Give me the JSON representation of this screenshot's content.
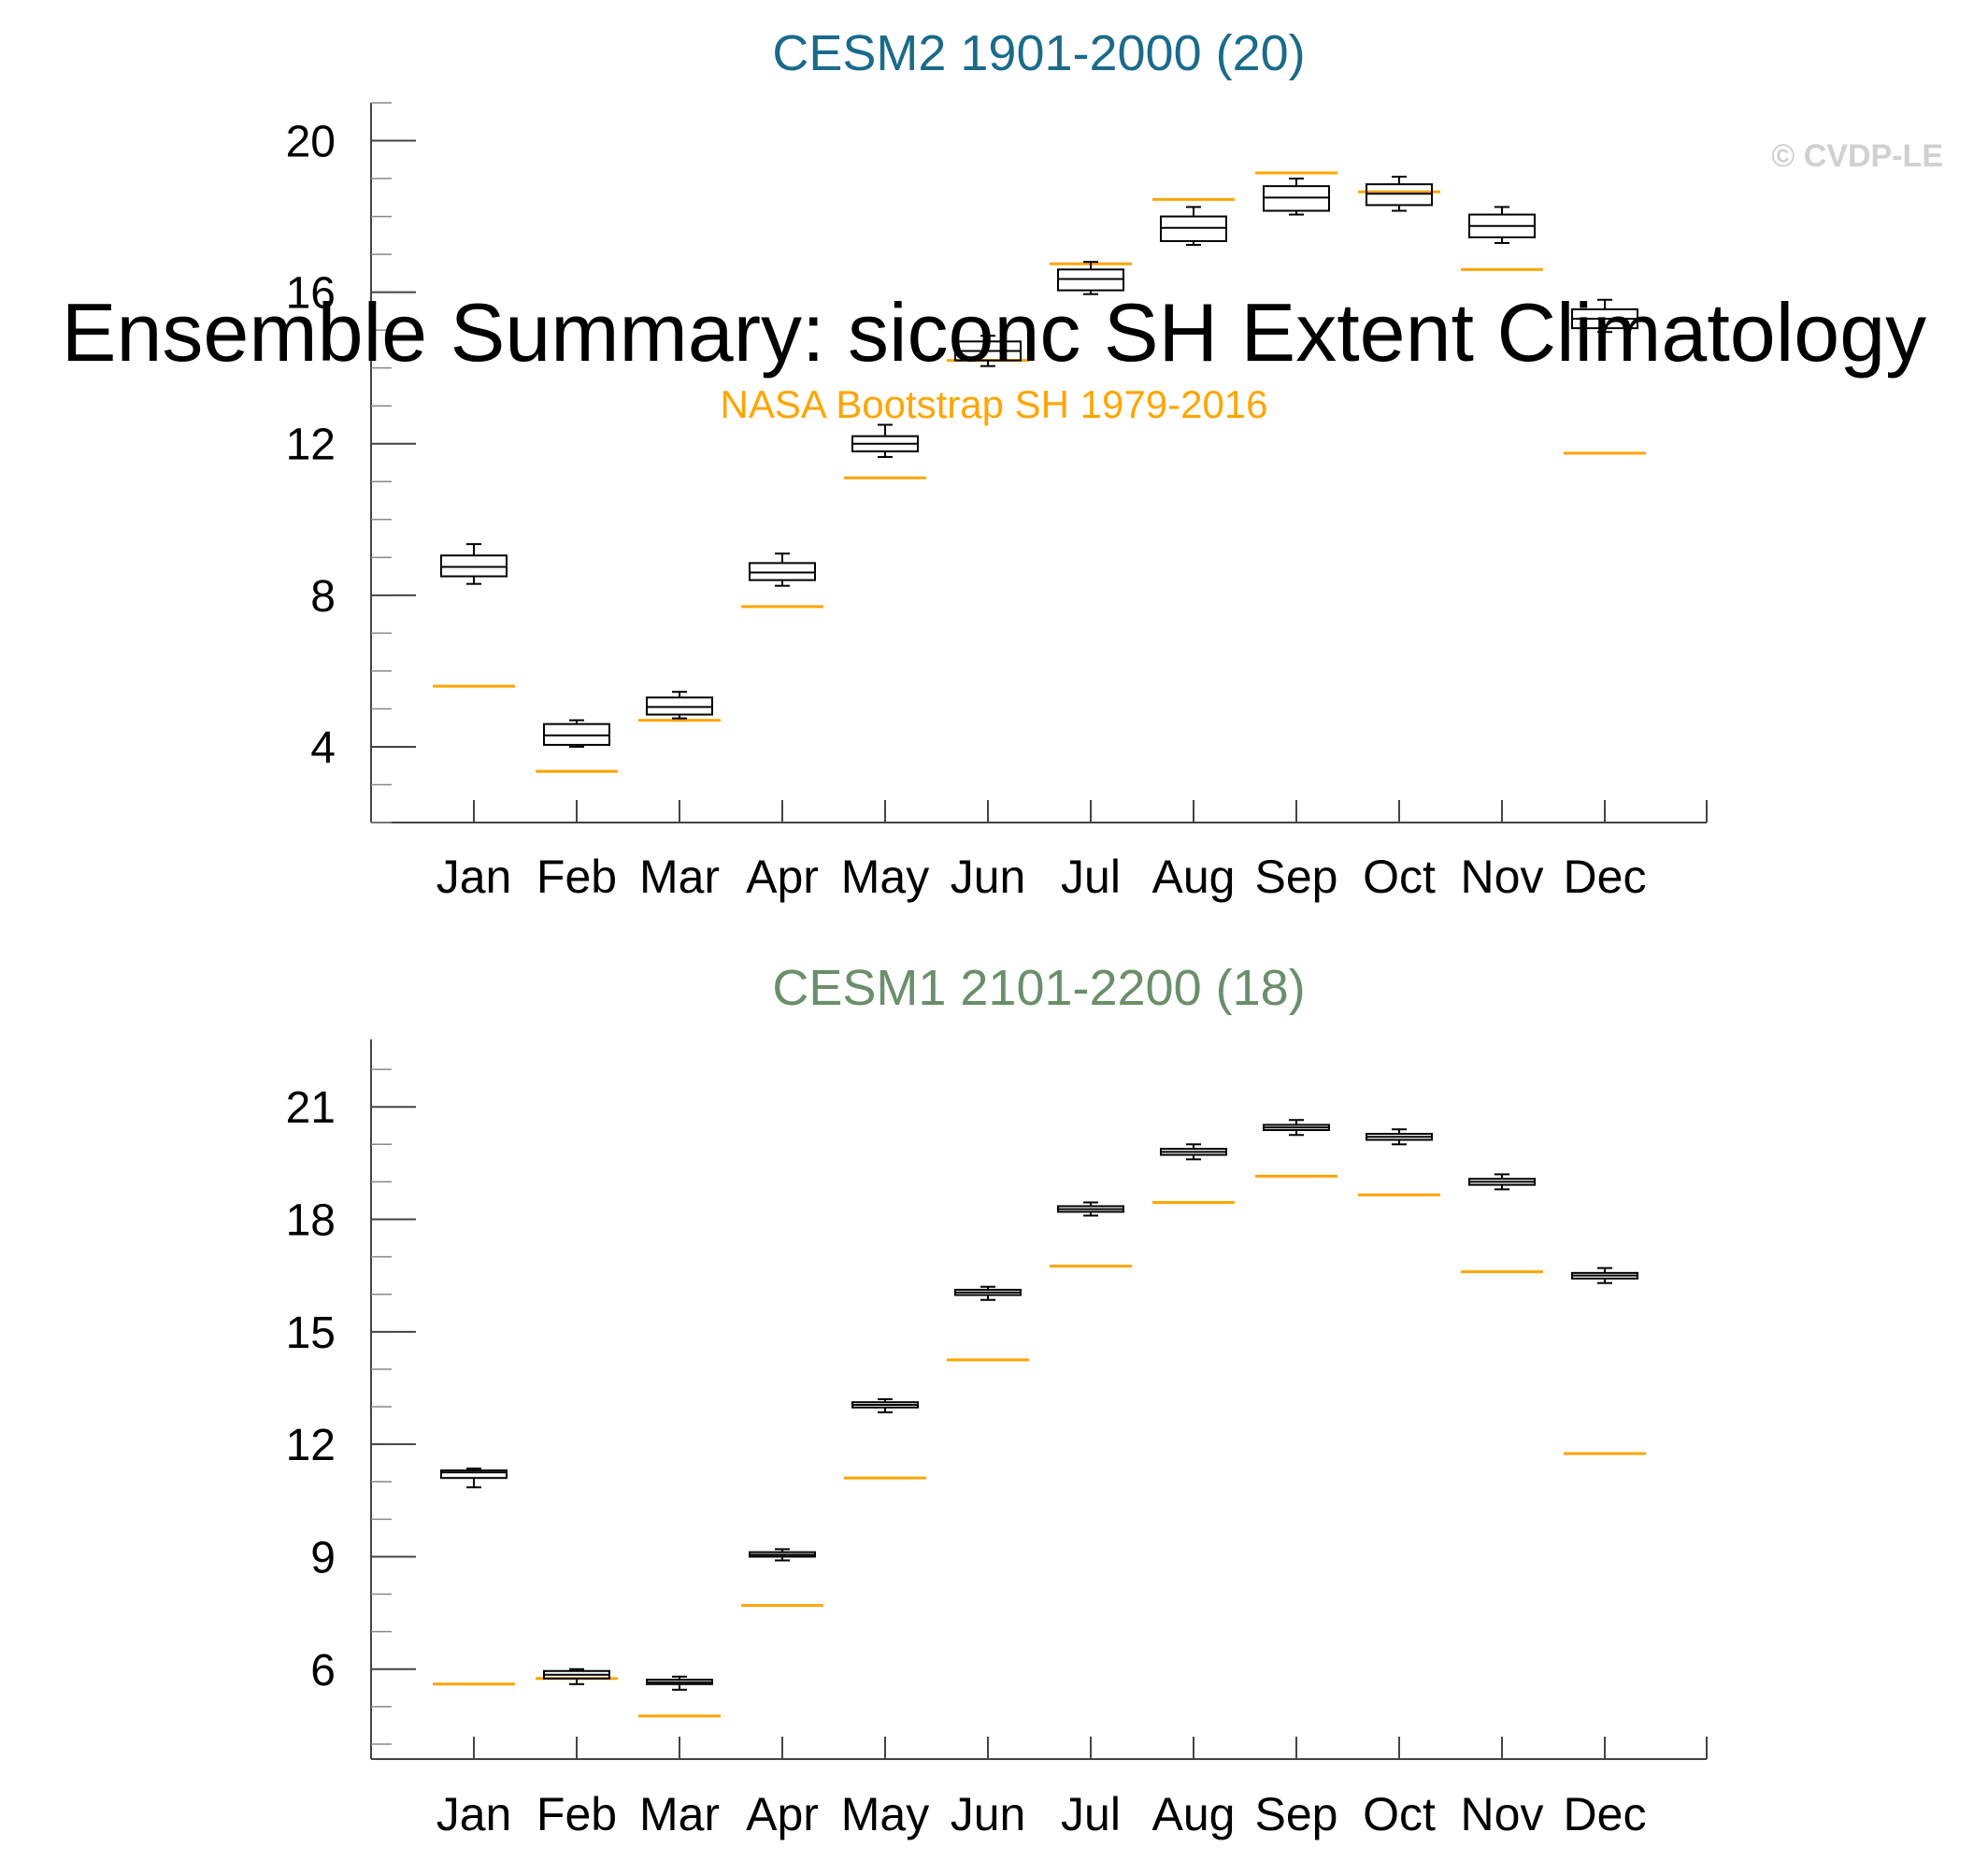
{
  "title": "Ensemble Summary: siconc SH Extent Climatology",
  "observations_label": "NASA Bootstrap SH 1979-2016",
  "copyright": "© CVDP-LE",
  "colors": {
    "panel1_title": "#1a6b8a",
    "panel2_title": "#6a8f6a",
    "observations": "#ffa500",
    "box": "#000000",
    "copyright": "#d0d0d0"
  },
  "chart_data": [
    {
      "type": "box",
      "title": "CESM2 1901-2000 (20)",
      "categories": [
        "Jan",
        "Feb",
        "Mar",
        "Apr",
        "May",
        "Jun",
        "Jul",
        "Aug",
        "Sep",
        "Oct",
        "Nov",
        "Dec"
      ],
      "ylim": [
        2.0,
        21.0
      ],
      "yticks": [
        4,
        8,
        12,
        16,
        20
      ],
      "yticklabels": [
        "4",
        "8",
        "12",
        "16",
        "20"
      ],
      "minor_step": 1,
      "boxes": [
        {
          "min": 8.3,
          "q1": 8.5,
          "median": 8.75,
          "q3": 9.05,
          "max": 9.35
        },
        {
          "min": 4.0,
          "q1": 4.05,
          "median": 4.3,
          "q3": 4.6,
          "max": 4.7
        },
        {
          "min": 4.75,
          "q1": 4.85,
          "median": 5.05,
          "q3": 5.3,
          "max": 5.45
        },
        {
          "min": 8.25,
          "q1": 8.4,
          "median": 8.6,
          "q3": 8.85,
          "max": 9.1
        },
        {
          "min": 11.65,
          "q1": 11.8,
          "median": 12.0,
          "q3": 12.2,
          "max": 12.5
        },
        {
          "min": 14.05,
          "q1": 14.2,
          "median": 14.45,
          "q3": 14.7,
          "max": 14.85
        },
        {
          "min": 15.95,
          "q1": 16.05,
          "median": 16.35,
          "q3": 16.6,
          "max": 16.8
        },
        {
          "min": 17.25,
          "q1": 17.35,
          "median": 17.7,
          "q3": 18.0,
          "max": 18.25
        },
        {
          "min": 18.05,
          "q1": 18.15,
          "median": 18.5,
          "q3": 18.8,
          "max": 19.0
        },
        {
          "min": 18.15,
          "q1": 18.3,
          "median": 18.6,
          "q3": 18.85,
          "max": 19.05
        },
        {
          "min": 17.3,
          "q1": 17.45,
          "median": 17.75,
          "q3": 18.05,
          "max": 18.25
        },
        {
          "min": 14.95,
          "q1": 15.05,
          "median": 15.3,
          "q3": 15.55,
          "max": 15.8
        }
      ],
      "observations": [
        5.6,
        3.35,
        4.7,
        7.7,
        11.1,
        14.2,
        16.75,
        18.45,
        19.15,
        18.65,
        16.6,
        11.75
      ]
    },
    {
      "type": "box",
      "title": "CESM1 2101-2200 (18)",
      "categories": [
        "Jan",
        "Feb",
        "Mar",
        "Apr",
        "May",
        "Jun",
        "Jul",
        "Aug",
        "Sep",
        "Oct",
        "Nov",
        "Dec"
      ],
      "ylim": [
        3.6,
        22.8
      ],
      "yticks": [
        6,
        9,
        12,
        15,
        18,
        21
      ],
      "yticklabels": [
        "6",
        "9",
        "12",
        "15",
        "18",
        "21"
      ],
      "minor_step": 1,
      "boxes": [
        {
          "min": 10.85,
          "q1": 11.1,
          "median": 11.25,
          "q3": 11.3,
          "max": 11.35
        },
        {
          "min": 5.6,
          "q1": 5.75,
          "median": 5.85,
          "q3": 5.95,
          "max": 6.0
        },
        {
          "min": 5.45,
          "q1": 5.6,
          "median": 5.65,
          "q3": 5.72,
          "max": 5.8
        },
        {
          "min": 8.9,
          "q1": 9.0,
          "median": 9.05,
          "q3": 9.12,
          "max": 9.2
        },
        {
          "min": 12.85,
          "q1": 12.98,
          "median": 13.05,
          "q3": 13.12,
          "max": 13.2
        },
        {
          "min": 15.85,
          "q1": 15.98,
          "median": 16.05,
          "q3": 16.12,
          "max": 16.2
        },
        {
          "min": 18.1,
          "q1": 18.2,
          "median": 18.27,
          "q3": 18.35,
          "max": 18.45
        },
        {
          "min": 19.6,
          "q1": 19.72,
          "median": 19.8,
          "q3": 19.88,
          "max": 20.0
        },
        {
          "min": 20.25,
          "q1": 20.38,
          "median": 20.45,
          "q3": 20.52,
          "max": 20.65
        },
        {
          "min": 20.0,
          "q1": 20.12,
          "median": 20.2,
          "q3": 20.28,
          "max": 20.4
        },
        {
          "min": 18.8,
          "q1": 18.92,
          "median": 19.0,
          "q3": 19.08,
          "max": 19.2
        },
        {
          "min": 16.3,
          "q1": 16.42,
          "median": 16.5,
          "q3": 16.57,
          "max": 16.7
        }
      ],
      "observations": [
        5.6,
        5.75,
        4.75,
        7.7,
        11.1,
        14.25,
        16.75,
        18.45,
        19.15,
        18.65,
        16.6,
        11.75
      ]
    }
  ]
}
